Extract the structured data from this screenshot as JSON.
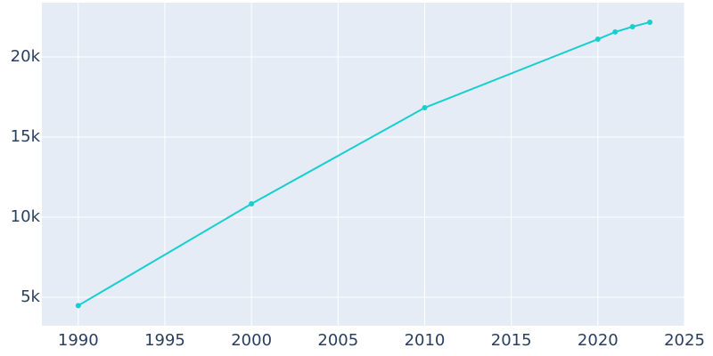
{
  "chart_data": {
    "type": "line",
    "x": [
      1990,
      2000,
      2010,
      2020,
      2021,
      2022,
      2023
    ],
    "series": [
      {
        "color": "#17cfcf",
        "values": [
          4480,
          10830,
          16830,
          21110,
          21560,
          21890,
          22170
        ]
      }
    ],
    "xlim": [
      1987.9,
      2025
    ],
    "ylim": [
      3220,
      23390
    ],
    "xticks": [
      1990,
      1995,
      2000,
      2005,
      2010,
      2015,
      2020,
      2025
    ],
    "yticks": [
      {
        "value": 5000,
        "label": "5k"
      },
      {
        "value": 10000,
        "label": "10k"
      },
      {
        "value": 15000,
        "label": "15k"
      },
      {
        "value": 20000,
        "label": "20k"
      }
    ],
    "grid": true
  }
}
